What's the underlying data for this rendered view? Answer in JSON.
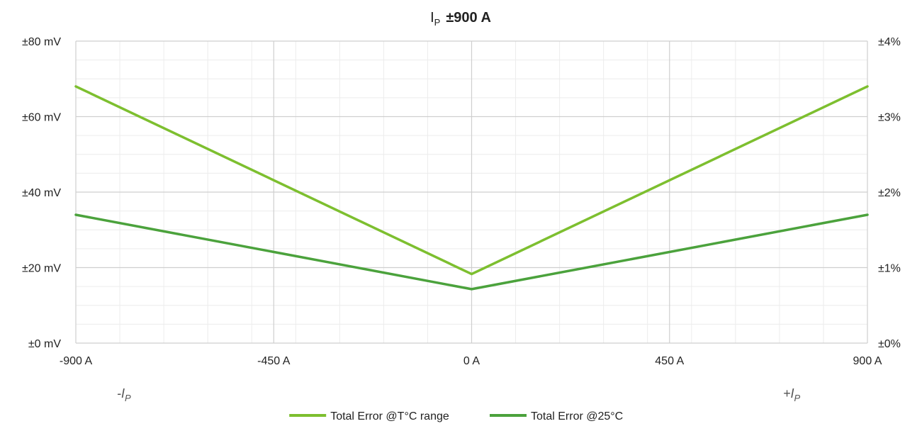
{
  "chart_data": {
    "type": "line",
    "title": "I",
    "title_subscript": "P",
    "title_suffix": "±900 A",
    "x": [
      -900,
      0,
      900
    ],
    "x_ticks": [
      -900,
      -450,
      0,
      450,
      900
    ],
    "x_tick_labels": [
      "-900 A",
      "-450 A",
      "0 A",
      "450 A",
      "900 A"
    ],
    "xlim": [
      -900,
      900
    ],
    "ylim": [
      0,
      80
    ],
    "y_ticks": [
      0,
      20,
      40,
      60,
      80
    ],
    "y_tick_labels": [
      "±0 mV",
      "±20 mV",
      "±40 mV",
      "±60 mV",
      "±80 mV"
    ],
    "y2_tick_labels": [
      "±0%",
      "±1%",
      "±2%",
      "±3%",
      "±4%"
    ],
    "x_minor_step": 100,
    "y_minor_step": 5,
    "grid": true,
    "legend_position": "bottom",
    "series": [
      {
        "name": "Total Error @T°C range",
        "color": "#7dbf2f",
        "values": [
          68,
          18.3,
          68
        ]
      },
      {
        "name": "Total Error @25°C",
        "color": "#4ba23c",
        "values": [
          34,
          14.3,
          34
        ]
      }
    ],
    "annotations": {
      "left": {
        "sign": "-",
        "symbol": "I",
        "subscript": "P"
      },
      "right": {
        "sign": "+",
        "symbol": "I",
        "subscript": "P"
      }
    }
  }
}
